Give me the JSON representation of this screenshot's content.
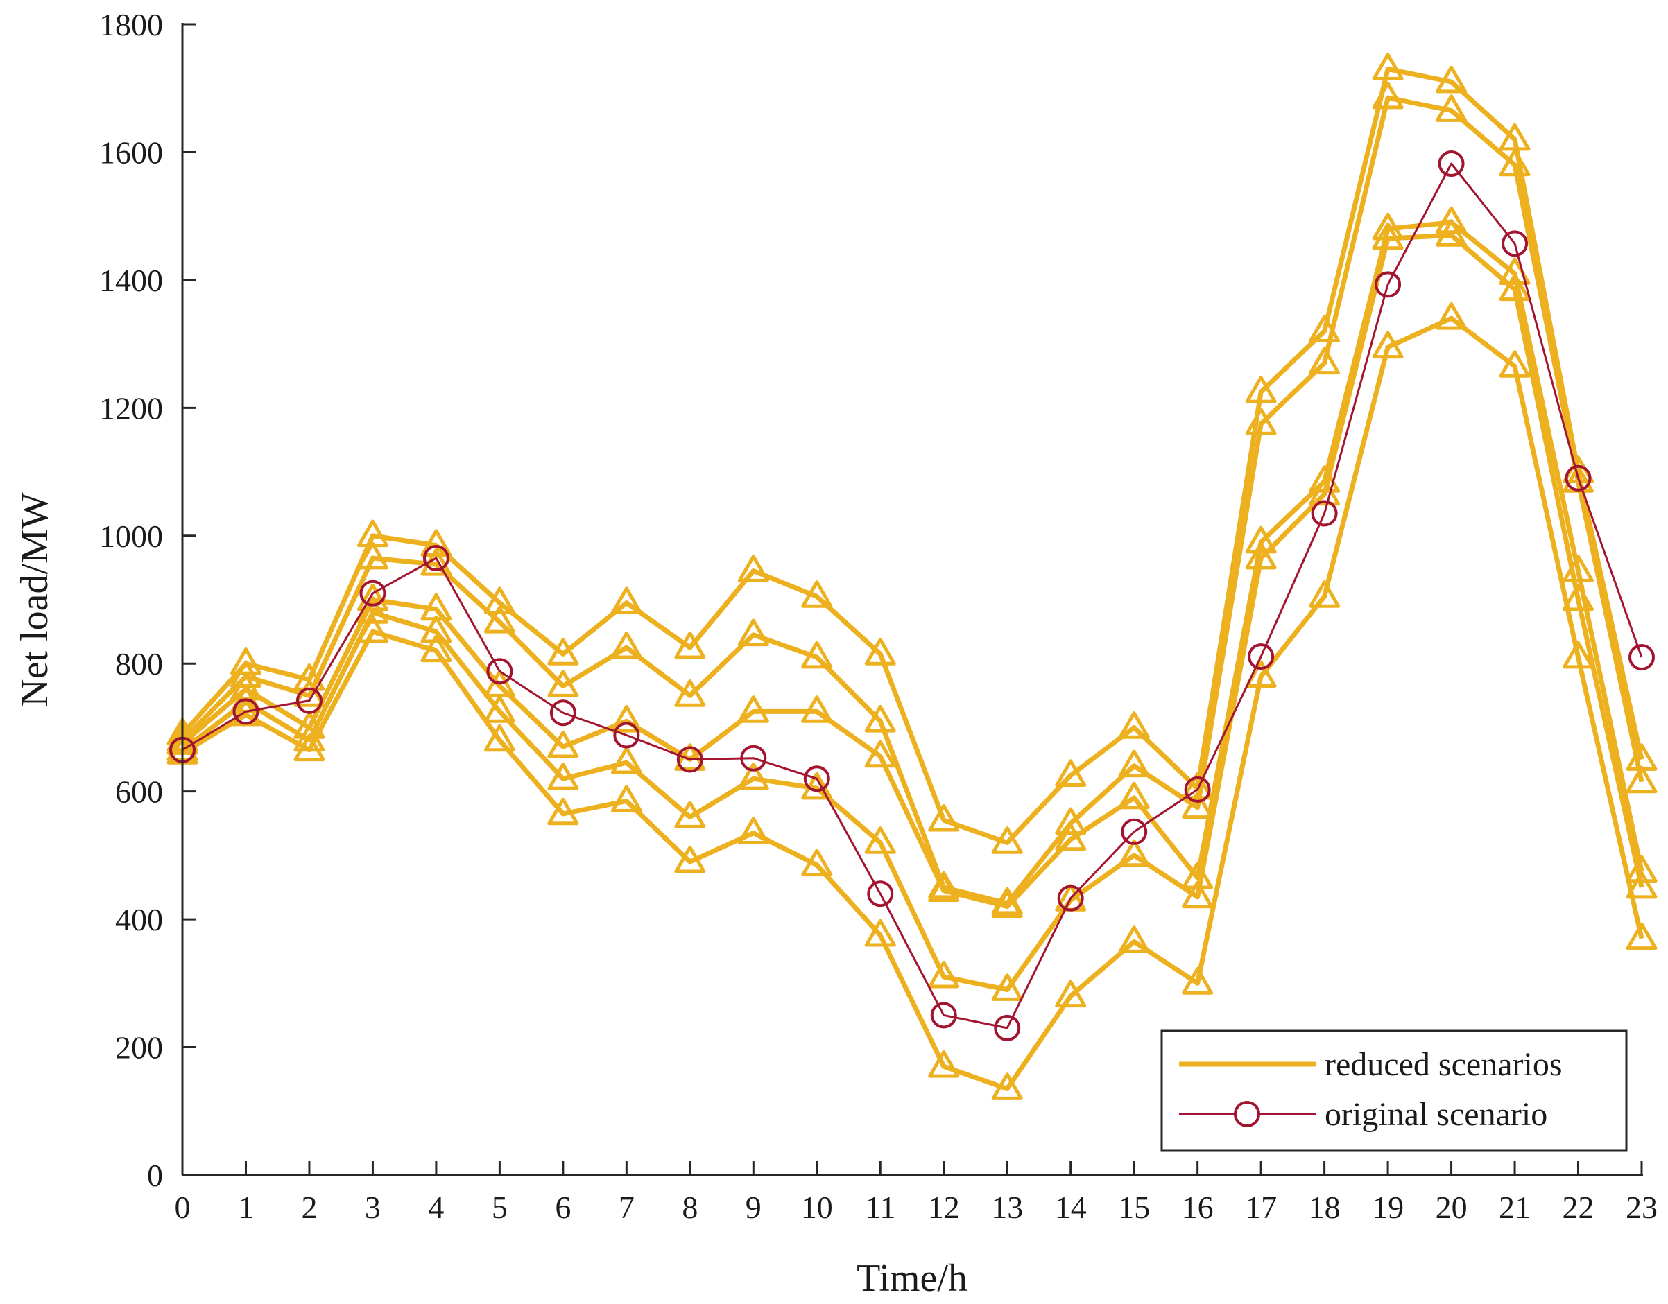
{
  "chart_data": {
    "type": "line",
    "title": "",
    "xlabel": "Time/h",
    "ylabel": "Net load/MW",
    "x": [
      0,
      1,
      2,
      3,
      4,
      5,
      6,
      7,
      8,
      9,
      10,
      11,
      12,
      13,
      14,
      15,
      16,
      17,
      18,
      19,
      20,
      21,
      22,
      23
    ],
    "xticks": [
      "0",
      "1",
      "2",
      "3",
      "4",
      "5",
      "6",
      "7",
      "8",
      "9",
      "10",
      "11",
      "12",
      "13",
      "14",
      "15",
      "16",
      "17",
      "18",
      "19",
      "20",
      "21",
      "22",
      "23"
    ],
    "ylim": [
      0,
      1800
    ],
    "yticks": [
      "0",
      "200",
      "400",
      "600",
      "800",
      "1000",
      "1200",
      "1400",
      "1600",
      "1800"
    ],
    "grid": false,
    "legend_position": "bottom-right",
    "colors": {
      "reduced": "#EDB120",
      "original": "#A2142F",
      "axis": "#262626"
    },
    "series": [
      {
        "name": "reduced scenarios",
        "group": "reduced",
        "marker": "triangle",
        "values": [
          690,
          800,
          775,
          1000,
          985,
          895,
          815,
          895,
          825,
          945,
          905,
          815,
          555,
          520,
          625,
          700,
          605,
          1225,
          1320,
          1730,
          1710,
          1620,
          1100,
          650
        ]
      },
      {
        "name": "reduced scenarios",
        "group": "reduced",
        "marker": "triangle",
        "values": [
          680,
          780,
          750,
          965,
          955,
          865,
          765,
          825,
          750,
          845,
          810,
          710,
          450,
          425,
          550,
          640,
          575,
          1175,
          1270,
          1685,
          1665,
          1580,
          1085,
          615
        ]
      },
      {
        "name": "reduced scenarios",
        "group": "reduced",
        "marker": "triangle",
        "values": [
          675,
          760,
          700,
          900,
          885,
          765,
          670,
          710,
          650,
          725,
          725,
          655,
          445,
          420,
          525,
          590,
          465,
          990,
          1085,
          1480,
          1490,
          1410,
          945,
          475
        ]
      },
      {
        "name": "reduced scenarios",
        "group": "reduced",
        "marker": "triangle",
        "values": [
          665,
          740,
          680,
          880,
          850,
          725,
          620,
          645,
          560,
          620,
          605,
          520,
          310,
          290,
          430,
          500,
          435,
          965,
          1065,
          1465,
          1470,
          1385,
          900,
          450
        ]
      },
      {
        "name": "reduced scenarios",
        "group": "reduced",
        "marker": "triangle",
        "values": [
          660,
          720,
          665,
          850,
          820,
          680,
          565,
          585,
          490,
          535,
          485,
          375,
          170,
          135,
          280,
          365,
          300,
          780,
          905,
          1295,
          1340,
          1265,
          810,
          370
        ]
      },
      {
        "name": "original scenario",
        "group": "original",
        "marker": "circle",
        "values": [
          665,
          725,
          742,
          910,
          965,
          788,
          723,
          688,
          650,
          652,
          620,
          440,
          250,
          230,
          433,
          537,
          603,
          811,
          1035,
          1393,
          1582,
          1457,
          1090,
          810
        ]
      }
    ],
    "legend": [
      {
        "label": "reduced scenarios",
        "group": "reduced"
      },
      {
        "label": "original scenario",
        "group": "original"
      }
    ]
  }
}
